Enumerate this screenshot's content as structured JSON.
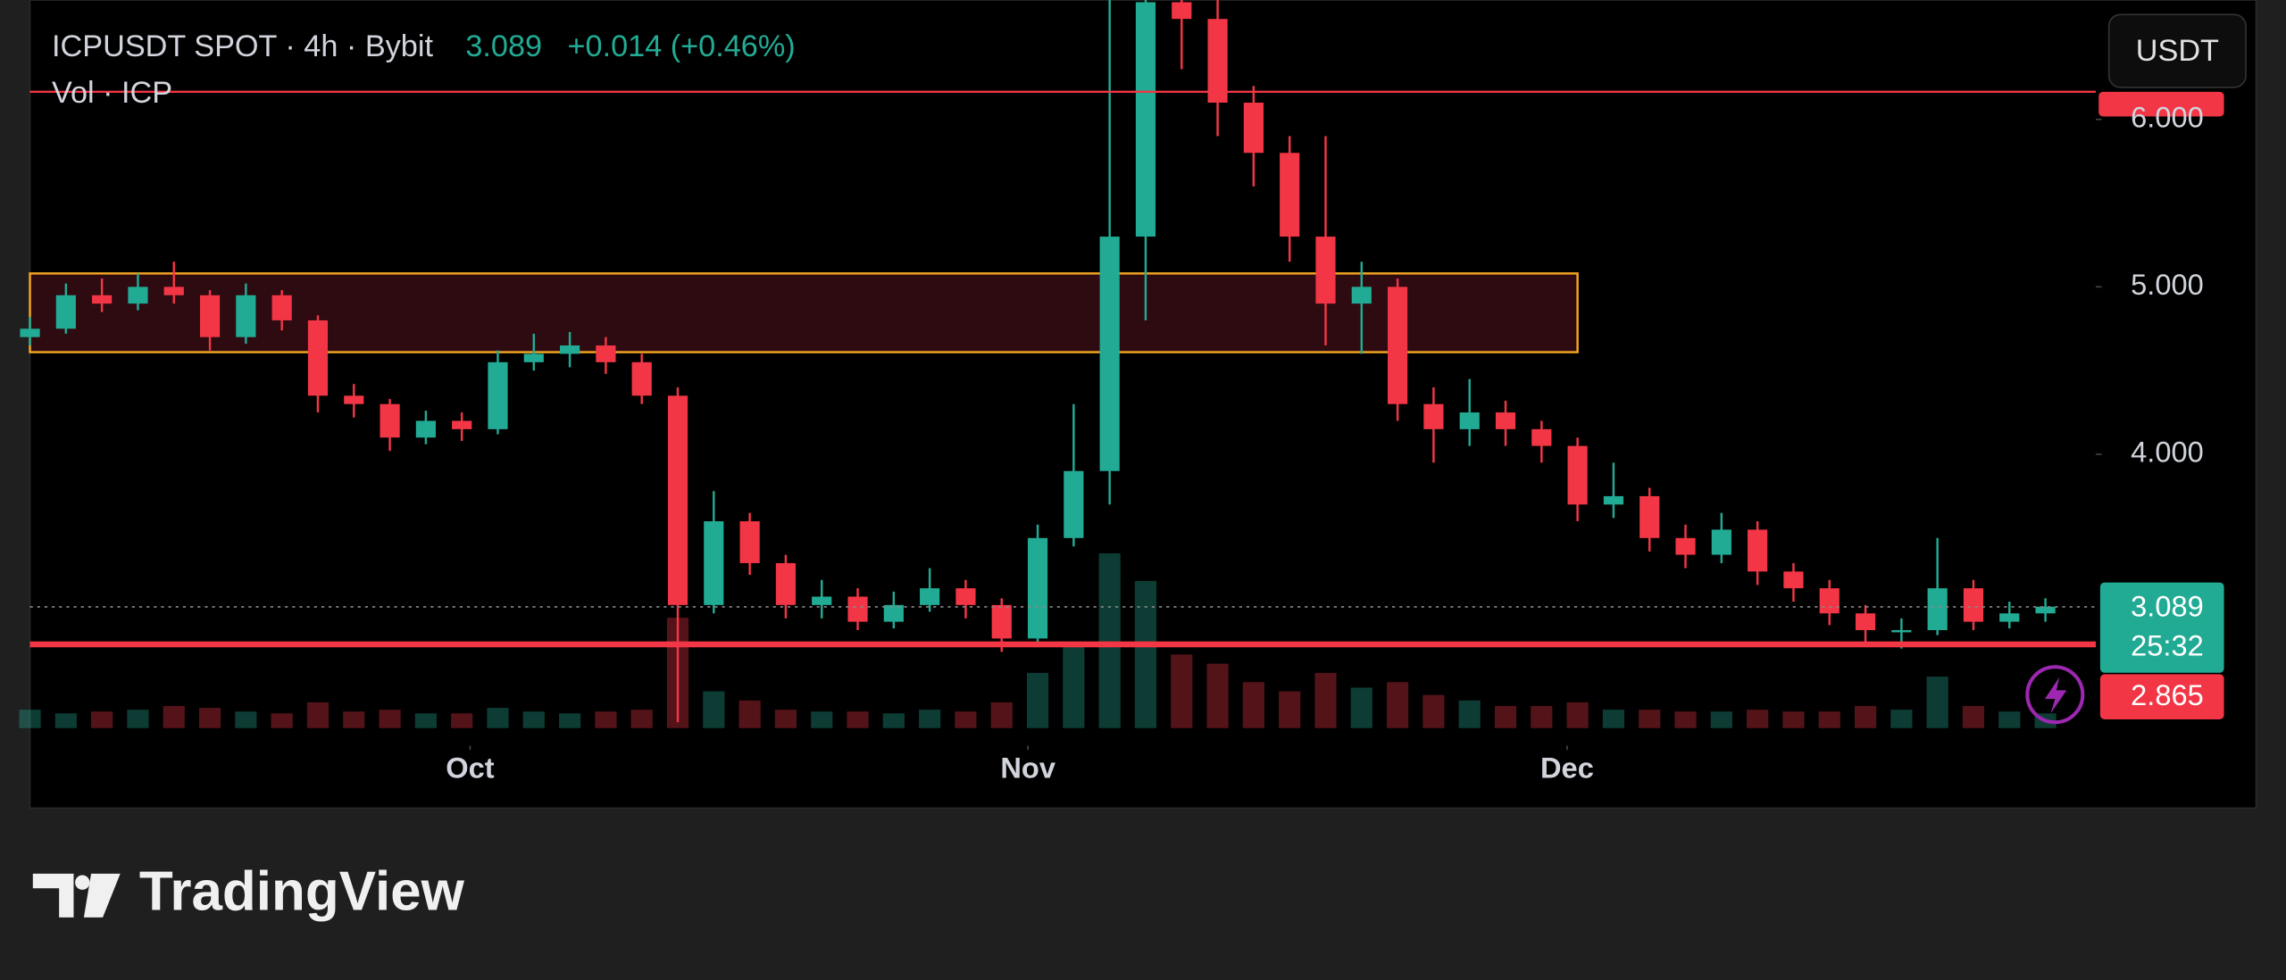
{
  "chart_data": {
    "type": "candlestick",
    "title": "ICPUSDT SPOT · 4h · Bybit",
    "last": 3.089,
    "change": "+0.014 (+0.46%)",
    "volume_label": "Vol · ICP",
    "currency": "USDT",
    "countdown": "25:32",
    "up_color": "#22ab94",
    "down_color": "#f23645",
    "open": [
      4.7,
      4.75,
      4.95,
      4.9,
      5.0,
      4.95,
      4.7,
      4.95,
      4.8,
      4.35,
      4.3,
      4.1,
      4.2,
      4.15,
      4.55,
      4.6,
      4.65,
      4.55,
      4.35,
      3.1,
      3.6,
      3.35,
      3.1,
      3.15,
      3.0,
      3.1,
      3.2,
      3.1,
      2.9,
      3.5,
      3.9,
      5.3,
      6.7,
      6.6,
      6.1,
      5.8,
      5.3,
      4.9,
      5.0,
      4.3,
      4.15,
      4.25,
      4.15,
      4.05,
      3.7,
      3.75,
      3.5,
      3.4,
      3.55,
      3.3,
      3.2,
      3.05,
      2.95,
      2.95,
      3.2,
      3.0,
      3.05
    ],
    "high": [
      4.82,
      5.02,
      5.05,
      5.08,
      5.15,
      4.98,
      5.02,
      4.98,
      4.83,
      4.42,
      4.33,
      4.26,
      4.25,
      4.62,
      4.72,
      4.73,
      4.7,
      4.6,
      4.4,
      3.78,
      3.65,
      3.4,
      3.25,
      3.2,
      3.18,
      3.32,
      3.25,
      3.14,
      3.58,
      4.3,
      6.8,
      6.8,
      6.8,
      6.75,
      6.2,
      5.9,
      5.9,
      5.15,
      5.05,
      4.4,
      4.45,
      4.32,
      4.2,
      4.1,
      3.95,
      3.8,
      3.58,
      3.65,
      3.6,
      3.35,
      3.25,
      3.1,
      3.02,
      3.5,
      3.25,
      3.12,
      3.14
    ],
    "low": [
      4.65,
      4.72,
      4.85,
      4.86,
      4.9,
      4.62,
      4.66,
      4.74,
      4.25,
      4.22,
      4.02,
      4.06,
      4.08,
      4.12,
      4.5,
      4.52,
      4.48,
      4.3,
      2.4,
      3.05,
      3.28,
      3.02,
      3.02,
      2.95,
      2.96,
      3.06,
      3.02,
      2.82,
      2.88,
      3.45,
      3.7,
      4.8,
      6.3,
      5.9,
      5.6,
      5.15,
      4.65,
      4.6,
      4.2,
      3.95,
      4.05,
      4.05,
      3.95,
      3.6,
      3.62,
      3.42,
      3.32,
      3.35,
      3.22,
      3.12,
      2.98,
      2.88,
      2.84,
      2.92,
      2.95,
      2.96,
      3.0
    ],
    "close": [
      4.75,
      4.95,
      4.9,
      5.0,
      4.95,
      4.7,
      4.95,
      4.8,
      4.35,
      4.3,
      4.1,
      4.2,
      4.15,
      4.55,
      4.6,
      4.65,
      4.55,
      4.35,
      3.1,
      3.6,
      3.35,
      3.1,
      3.15,
      3.0,
      3.1,
      3.2,
      3.1,
      2.9,
      3.5,
      3.9,
      5.3,
      6.7,
      6.6,
      6.1,
      5.8,
      5.3,
      4.9,
      5.0,
      4.3,
      4.15,
      4.25,
      4.15,
      4.05,
      3.7,
      3.75,
      3.5,
      3.4,
      3.55,
      3.3,
      3.2,
      3.05,
      2.95,
      2.95,
      3.2,
      3.0,
      3.05,
      3.09
    ],
    "volume": [
      10,
      8,
      9,
      10,
      12,
      11,
      9,
      8,
      14,
      9,
      10,
      8,
      8,
      11,
      9,
      8,
      9,
      10,
      60,
      20,
      15,
      10,
      9,
      9,
      8,
      10,
      9,
      14,
      30,
      45,
      95,
      80,
      40,
      35,
      25,
      20,
      30,
      22,
      25,
      18,
      15,
      12,
      12,
      14,
      10,
      10,
      9,
      9,
      10,
      9,
      9,
      12,
      10,
      28,
      12,
      9,
      8
    ],
    "xlim": [
      0,
      57.4
    ],
    "xticks": [
      {
        "value": 12.23,
        "label": "Oct"
      },
      {
        "value": 27.73,
        "label": "Nov"
      },
      {
        "value": 42.71,
        "label": "Dec"
      }
    ],
    "ylim": [
      2.365,
      6.713
    ],
    "yticks": [
      {
        "value": 4,
        "label": "4.000"
      },
      {
        "value": 5,
        "label": "5.000"
      },
      {
        "value": 6,
        "label": "6.000"
      }
    ],
    "zone": {
      "x": [
        0,
        43.0
      ],
      "y": [
        4.61,
        5.08
      ],
      "color": "#f5a623"
    },
    "resistance": 6.165,
    "support": 2.865
  },
  "brand": "TradingView"
}
